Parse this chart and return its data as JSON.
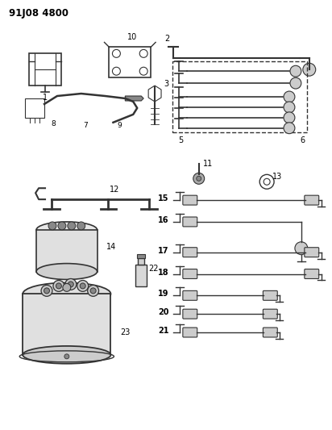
{
  "title": "91J08 4800",
  "bg": "#ffffff",
  "lc": "#333333",
  "gray1": "#888888",
  "gray2": "#aaaaaa",
  "gray3": "#cccccc"
}
